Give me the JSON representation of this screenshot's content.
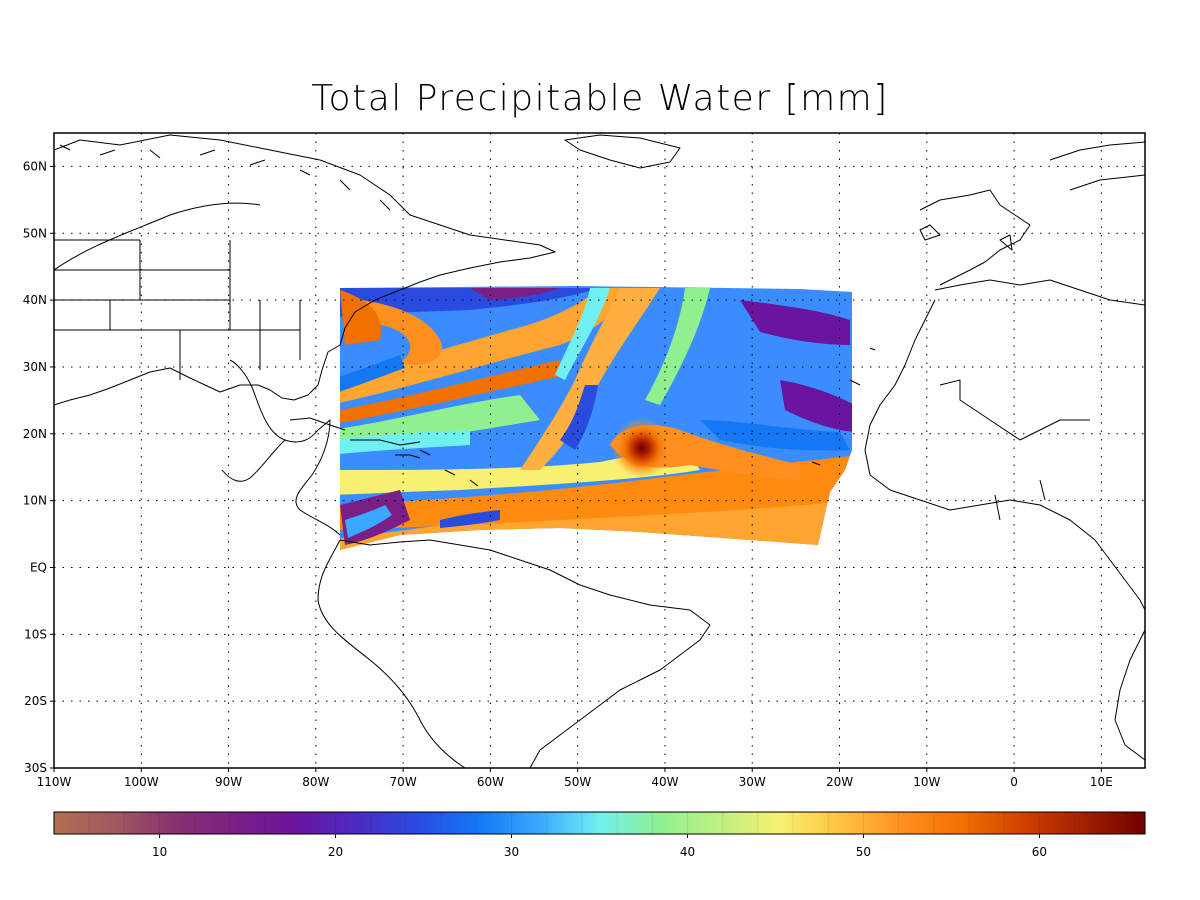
{
  "title": "Total Precipitable Water [mm]",
  "map": {
    "projection": "equirectangular",
    "lon_range": [
      -110,
      15
    ],
    "lat_range": [
      -30,
      65
    ],
    "lon_ticks": [
      {
        "value": -110,
        "label": "110W"
      },
      {
        "value": -100,
        "label": "100W"
      },
      {
        "value": -90,
        "label": "90W"
      },
      {
        "value": -80,
        "label": "80W"
      },
      {
        "value": -70,
        "label": "70W"
      },
      {
        "value": -60,
        "label": "60W"
      },
      {
        "value": -50,
        "label": "50W"
      },
      {
        "value": -40,
        "label": "40W"
      },
      {
        "value": -30,
        "label": "30W"
      },
      {
        "value": -20,
        "label": "20W"
      },
      {
        "value": -10,
        "label": "10W"
      },
      {
        "value": 0,
        "label": "0"
      },
      {
        "value": 10,
        "label": "10E"
      }
    ],
    "lat_ticks": [
      {
        "value": 60,
        "label": "60N"
      },
      {
        "value": 50,
        "label": "50N"
      },
      {
        "value": 40,
        "label": "40N"
      },
      {
        "value": 30,
        "label": "30N"
      },
      {
        "value": 20,
        "label": "20N"
      },
      {
        "value": 10,
        "label": "10N"
      },
      {
        "value": 0,
        "label": "EQ"
      },
      {
        "value": -10,
        "label": "10S"
      },
      {
        "value": -20,
        "label": "20S"
      },
      {
        "value": -30,
        "label": "30S"
      }
    ],
    "grid": "dotted",
    "data_region": {
      "lon": [
        -77.5,
        -18.5
      ],
      "lat": [
        3,
        42
      ]
    },
    "storm_center": {
      "lon": -43,
      "lat": 17.5
    },
    "colors": {
      "land_outline": "#000000",
      "background": "#ffffff"
    }
  },
  "colorbar": {
    "range": [
      4,
      66
    ],
    "tick_labels": [
      {
        "value": 10,
        "label": "10"
      },
      {
        "value": 20,
        "label": "20"
      },
      {
        "value": 30,
        "label": "30"
      },
      {
        "value": 40,
        "label": "40"
      },
      {
        "value": 50,
        "label": "50"
      },
      {
        "value": 60,
        "label": "60"
      }
    ],
    "stops": [
      "#b07050",
      "#a05a60",
      "#883070",
      "#7a1f85",
      "#6a15a0",
      "#4a2bc0",
      "#2a4be0",
      "#1478f5",
      "#3aa8ff",
      "#70f0f0",
      "#90f090",
      "#c0f080",
      "#f8f070",
      "#ffc040",
      "#ff9020",
      "#f07000",
      "#d04000",
      "#a02000",
      "#700000"
    ]
  }
}
